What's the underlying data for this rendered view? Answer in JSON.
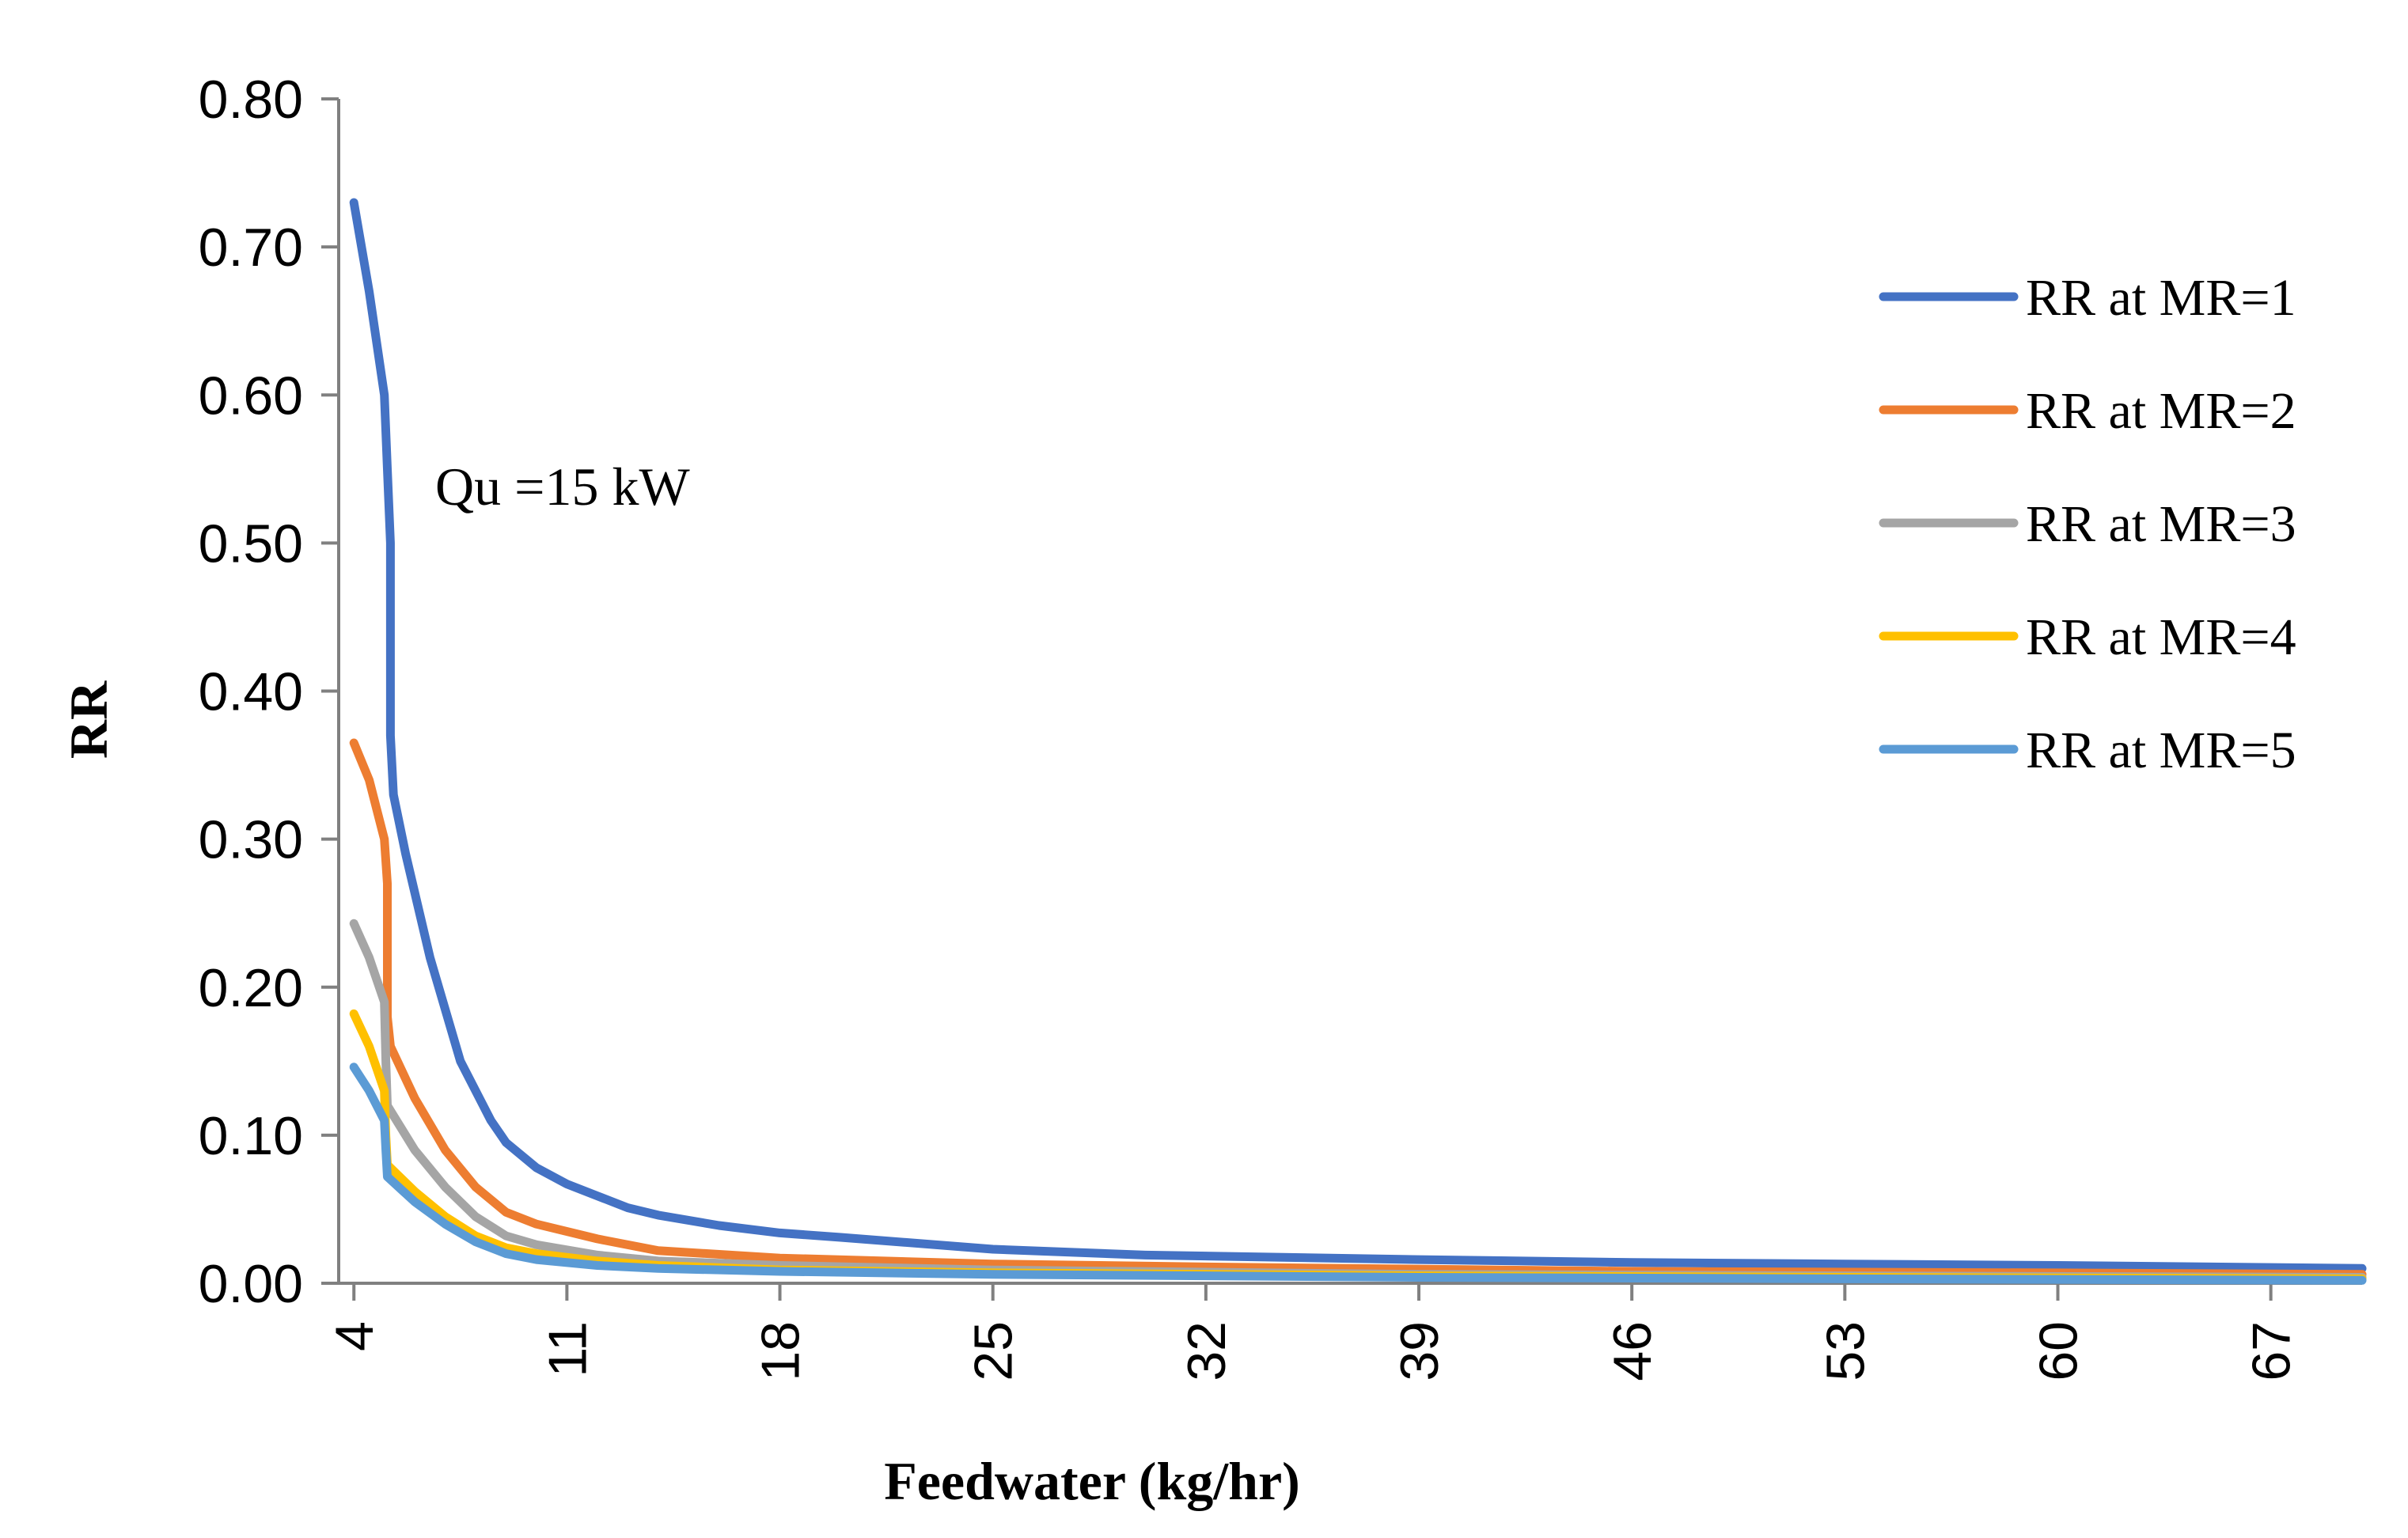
{
  "chart_data": {
    "type": "line",
    "title": "",
    "xlabel": "Feedwater (kg/hr)",
    "ylabel": "RR",
    "xlim": [
      3.5,
      70
    ],
    "ylim": [
      0,
      0.8
    ],
    "x_ticks": [
      4,
      11,
      18,
      25,
      32,
      39,
      46,
      53,
      60,
      67
    ],
    "y_ticks": [
      0.0,
      0.1,
      0.2,
      0.3,
      0.4,
      0.5,
      0.6,
      0.7,
      0.8
    ],
    "y_tick_labels": [
      "0.00",
      "0.10",
      "0.20",
      "0.30",
      "0.40",
      "0.50",
      "0.60",
      "0.70",
      "0.80"
    ],
    "grid": false,
    "legend_position": "right",
    "annotation": "Qu =15 kW",
    "series": [
      {
        "name": "RR at MR=1",
        "color": "#4472C4",
        "points": [
          [
            4,
            0.73
          ],
          [
            4.5,
            0.67
          ],
          [
            5,
            0.6
          ],
          [
            5.1,
            0.55
          ],
          [
            5.2,
            0.5
          ],
          [
            5.2,
            0.45
          ],
          [
            5.2,
            0.4
          ],
          [
            5.2,
            0.37
          ],
          [
            5.3,
            0.33
          ],
          [
            5.7,
            0.29
          ],
          [
            6.5,
            0.22
          ],
          [
            7.5,
            0.15
          ],
          [
            8.5,
            0.11
          ],
          [
            9,
            0.095
          ],
          [
            10,
            0.078
          ],
          [
            11,
            0.067
          ],
          [
            12,
            0.059
          ],
          [
            13,
            0.051
          ],
          [
            14,
            0.046
          ],
          [
            16,
            0.039
          ],
          [
            18,
            0.034
          ],
          [
            20,
            0.031
          ],
          [
            25,
            0.023
          ],
          [
            30,
            0.019
          ],
          [
            39,
            0.016
          ],
          [
            46,
            0.014
          ],
          [
            53,
            0.013
          ],
          [
            60,
            0.012
          ],
          [
            70,
            0.01
          ]
        ]
      },
      {
        "name": "RR at MR=2",
        "color": "#ED7D31",
        "points": [
          [
            4,
            0.365
          ],
          [
            4.5,
            0.34
          ],
          [
            5,
            0.3
          ],
          [
            5.1,
            0.27
          ],
          [
            5.1,
            0.22
          ],
          [
            5.1,
            0.18
          ],
          [
            5.2,
            0.16
          ],
          [
            6,
            0.125
          ],
          [
            7,
            0.09
          ],
          [
            8,
            0.065
          ],
          [
            9,
            0.048
          ],
          [
            10,
            0.04
          ],
          [
            12,
            0.03
          ],
          [
            14,
            0.022
          ],
          [
            18,
            0.017
          ],
          [
            25,
            0.013
          ],
          [
            32,
            0.011
          ],
          [
            46,
            0.008
          ],
          [
            60,
            0.007
          ],
          [
            70,
            0.006
          ]
        ]
      },
      {
        "name": "RR at MR=3",
        "color": "#A5A5A5",
        "points": [
          [
            4,
            0.243
          ],
          [
            4.5,
            0.22
          ],
          [
            5,
            0.19
          ],
          [
            5.05,
            0.15
          ],
          [
            5.1,
            0.12
          ],
          [
            6,
            0.09
          ],
          [
            7,
            0.065
          ],
          [
            8,
            0.045
          ],
          [
            9,
            0.032
          ],
          [
            10,
            0.026
          ],
          [
            12,
            0.019
          ],
          [
            14,
            0.015
          ],
          [
            18,
            0.012
          ],
          [
            25,
            0.009
          ],
          [
            39,
            0.006
          ],
          [
            53,
            0.005
          ],
          [
            70,
            0.004
          ]
        ]
      },
      {
        "name": "RR at MR=4",
        "color": "#FFC000",
        "points": [
          [
            4,
            0.182
          ],
          [
            4.5,
            0.16
          ],
          [
            5,
            0.13
          ],
          [
            5.05,
            0.1
          ],
          [
            5.1,
            0.08
          ],
          [
            6,
            0.062
          ],
          [
            7,
            0.045
          ],
          [
            8,
            0.032
          ],
          [
            9,
            0.024
          ],
          [
            10,
            0.02
          ],
          [
            12,
            0.015
          ],
          [
            14,
            0.012
          ],
          [
            18,
            0.009
          ],
          [
            25,
            0.007
          ],
          [
            39,
            0.005
          ],
          [
            53,
            0.004
          ],
          [
            70,
            0.003
          ]
        ]
      },
      {
        "name": "RR at MR=5",
        "color": "#5B9BD5",
        "points": [
          [
            4,
            0.146
          ],
          [
            4.5,
            0.13
          ],
          [
            5,
            0.11
          ],
          [
            5.05,
            0.09
          ],
          [
            5.1,
            0.072
          ],
          [
            6,
            0.055
          ],
          [
            7,
            0.04
          ],
          [
            8,
            0.028
          ],
          [
            9,
            0.02
          ],
          [
            10,
            0.016
          ],
          [
            12,
            0.012
          ],
          [
            14,
            0.01
          ],
          [
            18,
            0.008
          ],
          [
            25,
            0.006
          ],
          [
            39,
            0.004
          ],
          [
            53,
            0.003
          ],
          [
            70,
            0.002
          ]
        ]
      }
    ]
  }
}
